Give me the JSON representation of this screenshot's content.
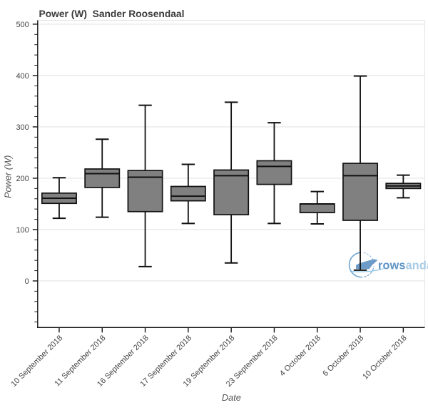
{
  "title": "Power (W)  Sander Roosendaal",
  "watermark": {
    "text_bold": "rows",
    "text_light": "andall",
    "color_bold": "#5d93c5",
    "color_light": "#a9cbe5",
    "circle_color": "#5f9bcb",
    "blade_color": "#6697c6",
    "swoosh_color": "#8ec6e6"
  },
  "colors": {
    "box_fill": "#808080",
    "box_edge": "#111111",
    "median": "#111111",
    "whisker": "#111111",
    "grid": "#e4e4e4",
    "outline": "#e4e4e4",
    "axis": "#151515",
    "tick_label": "#454545",
    "title": "#3a3a3a",
    "axis_label": "#555555",
    "background": "#ffffff"
  },
  "chart_data": {
    "type": "boxplot",
    "title": "Power (W)  Sander Roosendaal",
    "xlabel": "Date",
    "ylabel": "Power (W)",
    "ylim": [
      -90.7,
      507.5
    ],
    "yticks_major": [
      0,
      100,
      200,
      300,
      400,
      500
    ],
    "ytick_labels": [
      "0",
      "100",
      "200",
      "300",
      "400",
      "500"
    ],
    "ytick_minor_step": 20,
    "ytick_minor_min": -80,
    "ytick_minor_max": 500,
    "grid": "horizontal-major",
    "legend": "none",
    "categories": [
      "10 September 2018",
      "11 September 2018",
      "16 September 2018",
      "17 September 2018",
      "19 September 2018",
      "23 September 2018",
      "4 October 2018",
      "6 October 2018",
      "10 October 2018"
    ],
    "series": [
      {
        "name": "10 September 2018",
        "low": 122,
        "q1": 151,
        "median": 161,
        "q3": 171,
        "high": 201
      },
      {
        "name": "11 September 2018",
        "low": 124,
        "q1": 182,
        "median": 209,
        "q3": 218,
        "high": 276
      },
      {
        "name": "16 September 2018",
        "low": 28,
        "q1": 135,
        "median": 202,
        "q3": 215,
        "high": 342
      },
      {
        "name": "17 September 2018",
        "low": 112,
        "q1": 156,
        "median": 165,
        "q3": 184,
        "high": 227
      },
      {
        "name": "19 September 2018",
        "low": 35,
        "q1": 129,
        "median": 205,
        "q3": 216,
        "high": 348
      },
      {
        "name": "23 September 2018",
        "low": 112,
        "q1": 188,
        "median": 223,
        "q3": 234,
        "high": 308
      },
      {
        "name": "4 October 2018",
        "low": 111,
        "q1": 133,
        "median": 150,
        "q3": 150,
        "high": 174
      },
      {
        "name": "6 October 2018",
        "low": 21,
        "q1": 118,
        "median": 205,
        "q3": 229,
        "high": 399
      },
      {
        "name": "10 October 2018",
        "low": 162,
        "q1": 180,
        "median": 185,
        "q3": 190,
        "high": 206
      }
    ]
  }
}
